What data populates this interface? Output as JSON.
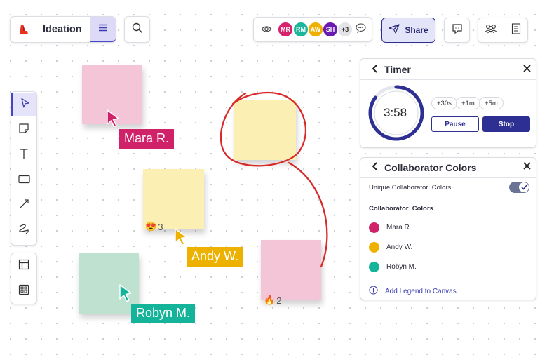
{
  "header": {
    "board_title": "Ideation",
    "share_label": "Share",
    "extra_count": "+3",
    "avatars": [
      {
        "initials": "MR",
        "color": "#d8226e"
      },
      {
        "initials": "RM",
        "color": "#1cb69c"
      },
      {
        "initials": "AW",
        "color": "#f0b000"
      },
      {
        "initials": "SH",
        "color": "#6a1bb1"
      }
    ]
  },
  "canvas": {
    "cursors": [
      {
        "name": "Mara R.",
        "color": "#d02268"
      },
      {
        "name": "Andy W.",
        "color": "#edb100"
      },
      {
        "name": "Robyn M.",
        "color": "#14b49a"
      }
    ],
    "reactions": [
      {
        "emoji": "😍",
        "count": "3"
      },
      {
        "emoji": "🔥",
        "count": "2"
      }
    ],
    "note_colors": {
      "pink": "#f4c4d7",
      "yellow": "#fbefb3",
      "green": "#bfe1cf"
    },
    "annotation_color": "#d92a2a"
  },
  "timer": {
    "title": "Timer",
    "time": "3:58",
    "add_30s": "+30s",
    "add_1m": "+1m",
    "add_5m": "+5m",
    "pause_label": "Pause",
    "stop_label": "Stop",
    "progress": 0.85,
    "accent": "#2d2f93"
  },
  "collab": {
    "title": "Collaborator Colors",
    "toggle_label": "Unique Collaborator  Colors",
    "toggle_on": true,
    "section_title": "Collaborator  Colors",
    "add_legend": "Add Legend to Canvas",
    "collaborators": [
      {
        "name": "Mara R.",
        "color": "#d02268"
      },
      {
        "name": "Andy W.",
        "color": "#edb100"
      },
      {
        "name": "Robyn M.",
        "color": "#14b49a"
      }
    ]
  },
  "toolbar": {
    "tools": [
      "select-icon",
      "sticky-note-icon",
      "text-icon",
      "rectangle-icon",
      "line-icon",
      "pen-icon"
    ],
    "extra": [
      "frame-icon",
      "templates-icon"
    ]
  }
}
